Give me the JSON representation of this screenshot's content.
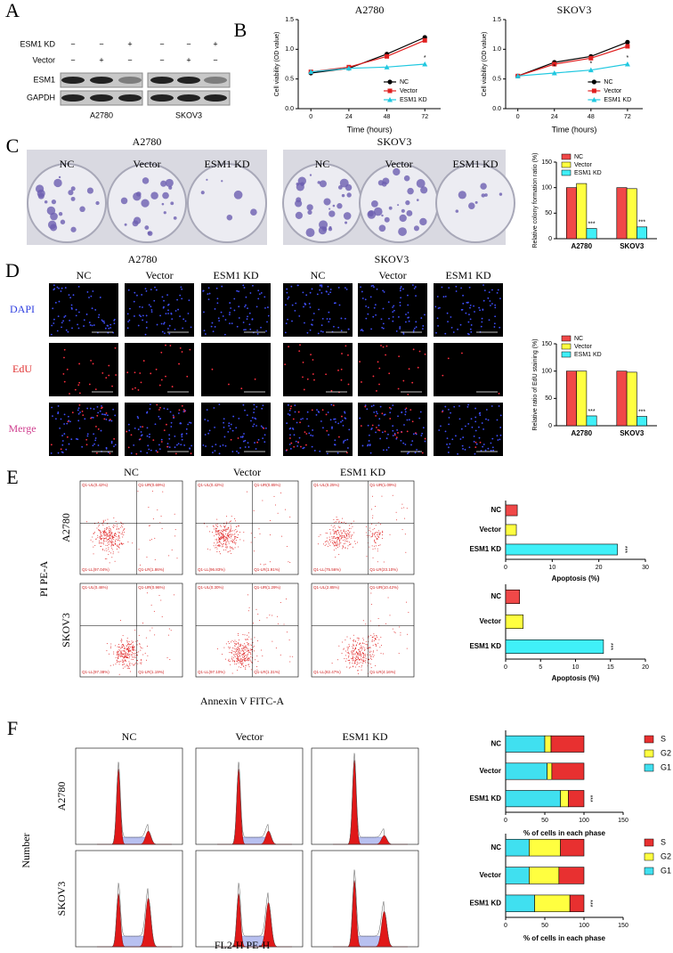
{
  "labels": [
    "A",
    "B",
    "C",
    "D",
    "E",
    "F"
  ],
  "blot": {
    "rows": [
      "ESM1 KD",
      "Vector"
    ],
    "signs": [
      [
        "−",
        "−",
        "+",
        "−",
        "−",
        "+"
      ],
      [
        "−",
        "+",
        "−",
        "−",
        "+",
        "−"
      ]
    ],
    "bands": [
      "ESM1",
      "GAPDH"
    ],
    "cells": [
      "A2780",
      "SKOV3"
    ]
  },
  "colony": {
    "groups": [
      {
        "name": "A2780",
        "conditions": [
          "NC",
          "Vector",
          "ESM1 KD"
        ]
      },
      {
        "name": "SKOV3",
        "conditions": [
          "NC",
          "Vector",
          "ESM1 KD"
        ]
      }
    ]
  },
  "edu": {
    "groups": [
      {
        "name": "A2780",
        "conditions": [
          "NC",
          "Vector",
          "ESM1 KD"
        ]
      },
      {
        "name": "SKOV3",
        "conditions": [
          "NC",
          "Vector",
          "ESM1 KD"
        ]
      }
    ],
    "channels": [
      "DAPI",
      "EdU",
      "Merge"
    ]
  },
  "flow": {
    "conditions": [
      "NC",
      "Vector",
      "ESM1 KD"
    ],
    "cells": [
      "A2780",
      "SKOV3"
    ],
    "ylabel": "PI PE-A",
    "xlabel": "Annexin V FITC-A",
    "quadrants": [
      [
        [
          "Q1-UL(0.42%)",
          "Q1-UR(0.69%)",
          "Q1-LL(97.04%)",
          "Q1-LR(1.86%)"
        ],
        [
          "Q1-UL(0.42%)",
          "Q1-UR(0.85%)",
          "Q1-LL(96.83%)",
          "Q1-LR(1.91%)"
        ],
        [
          "Q1-UL(0.25%)",
          "Q1-UR(1.09%)",
          "Q1-LL(75.56%)",
          "Q1-LR(23.10%)"
        ]
      ],
      [
        [
          "Q1-UL(0.46%)",
          "Q1-UR(0.96%)",
          "Q1-LL(97.38%)",
          "Q1-LR(1.19%)"
        ],
        [
          "Q1-UL(0.30%)",
          "Q1-UR(1.29%)",
          "Q1-LL(97.10%)",
          "Q1-LR(1.31%)"
        ],
        [
          "Q1-UL(2.85%)",
          "Q1-UR(10.42%)",
          "Q1-LL(82.47%)",
          "Q1-LR(4.16%)"
        ]
      ]
    ]
  },
  "cycle": {
    "conditions": [
      "NC",
      "Vector",
      "ESM1 KD"
    ],
    "cells": [
      "A2780",
      "SKOV3"
    ],
    "ylabel": "Number",
    "xlabel": "FL2-H PE-H"
  },
  "chart_data": [
    {
      "type": "line",
      "title": "A2780",
      "xlabel": "Time (hours)",
      "ylabel": "Cell viability (OD value)",
      "x": [
        0,
        24,
        48,
        72
      ],
      "xlim": [
        -8,
        82
      ],
      "xticks": [
        0,
        24,
        48,
        72
      ],
      "ylim": [
        0,
        1.5
      ],
      "yticks": [
        {
          "value": 0,
          "label": "0.0"
        },
        0.5,
        {
          "value": 1,
          "label": "1.0"
        },
        1.5
      ],
      "legend": "lower right",
      "series": [
        {
          "name": "NC",
          "color": "#000000",
          "marker": "circle",
          "values": [
            0.6,
            0.68,
            0.92,
            1.2
          ]
        },
        {
          "name": "Vector",
          "color": "#e02020",
          "marker": "square",
          "values": [
            0.62,
            0.7,
            0.88,
            1.15
          ]
        },
        {
          "name": "ESM1 KD",
          "color": "#20c8e0",
          "marker": "triangle",
          "values": [
            0.62,
            0.68,
            0.7,
            0.75
          ],
          "significance": [
            null,
            null,
            null,
            "*"
          ]
        }
      ]
    },
    {
      "type": "line",
      "title": "SKOV3",
      "xlabel": "Time (hours)",
      "ylabel": "Cell viability (OD value)",
      "x": [
        0,
        24,
        48,
        72
      ],
      "xlim": [
        -8,
        82
      ],
      "xticks": [
        0,
        24,
        48,
        72
      ],
      "ylim": [
        0,
        1.5
      ],
      "yticks": [
        {
          "value": 0,
          "label": "0.0"
        },
        0.5,
        {
          "value": 1,
          "label": "1.0"
        },
        1.5
      ],
      "legend": "lower right",
      "series": [
        {
          "name": "NC",
          "color": "#000000",
          "marker": "circle",
          "values": [
            0.55,
            0.78,
            0.88,
            1.12
          ]
        },
        {
          "name": "Vector",
          "color": "#e02020",
          "marker": "square",
          "values": [
            0.55,
            0.75,
            0.85,
            1.05
          ]
        },
        {
          "name": "ESM1 KD",
          "color": "#20c8e0",
          "marker": "triangle",
          "values": [
            0.55,
            0.6,
            0.65,
            0.75
          ],
          "significance": [
            null,
            "*",
            "*",
            "*"
          ]
        }
      ]
    },
    {
      "type": "bar",
      "ylabel": "Relative colony formation ratio (%)",
      "categories": [
        "A2780",
        "SKOV3"
      ],
      "ylim": [
        0,
        150
      ],
      "yticks": [
        0,
        50,
        100,
        150
      ],
      "legend": "upper left",
      "series": [
        {
          "name": "NC",
          "color": "#f04848",
          "values": [
            100,
            100
          ]
        },
        {
          "name": "Vector",
          "color": "#ffff40",
          "values": [
            108,
            98
          ]
        },
        {
          "name": "ESM1 KD",
          "color": "#40f0f8",
          "values": [
            20,
            23
          ],
          "significance": [
            "***",
            "***"
          ]
        }
      ]
    },
    {
      "type": "bar",
      "ylabel": "Relative ratio of EdU staining (%)",
      "categories": [
        "A2780",
        "SKOV3"
      ],
      "ylim": [
        0,
        150
      ],
      "yticks": [
        0,
        50,
        100,
        150
      ],
      "legend": "upper left",
      "series": [
        {
          "name": "NC",
          "color": "#f04848",
          "values": [
            100,
            100
          ]
        },
        {
          "name": "Vector",
          "color": "#ffff40",
          "values": [
            100,
            98
          ]
        },
        {
          "name": "ESM1 KD",
          "color": "#40f0f8",
          "values": [
            18,
            17
          ],
          "significance": [
            "***",
            "***"
          ]
        }
      ]
    },
    {
      "type": "barh",
      "xlabel": "Apoptosis (%)",
      "categories": [
        "NC",
        "Vector",
        "ESM1 KD"
      ],
      "values": [
        2.5,
        2.3,
        24
      ],
      "colors": [
        "#f04848",
        "#ffff40",
        "#40f0f8"
      ],
      "xlim": [
        0,
        30
      ],
      "xticks": [
        0,
        10,
        20,
        30
      ],
      "significance": [
        null,
        null,
        "***"
      ]
    },
    {
      "type": "barh",
      "xlabel": "Apoptosis (%)",
      "categories": [
        "NC",
        "Vector",
        "ESM1 KD"
      ],
      "values": [
        2,
        2.5,
        14
      ],
      "colors": [
        "#f04848",
        "#ffff40",
        "#40f0f8"
      ],
      "xlim": [
        0,
        20
      ],
      "xticks": [
        0,
        5,
        10,
        15,
        20
      ],
      "significance": [
        null,
        null,
        "***"
      ]
    },
    {
      "type": "stacked_barh",
      "xlabel": "% of cells in each phase",
      "categories": [
        "NC",
        "Vector",
        "ESM1 KD"
      ],
      "xlim": [
        0,
        150
      ],
      "xticks": [
        0,
        50,
        100,
        150
      ],
      "legend": "right",
      "significance": [
        null,
        null,
        "***"
      ],
      "series": [
        {
          "name": "G1",
          "color": "#40e0f0",
          "values": [
            50,
            53,
            70
          ]
        },
        {
          "name": "G2",
          "color": "#ffff40",
          "values": [
            8,
            6,
            10
          ]
        },
        {
          "name": "S",
          "color": "#e83030",
          "values": [
            42,
            41,
            20
          ]
        }
      ]
    },
    {
      "type": "stacked_barh",
      "xlabel": "% of cells in each phase",
      "categories": [
        "NC",
        "Vector",
        "ESM1 KD"
      ],
      "xlim": [
        0,
        150
      ],
      "xticks": [
        0,
        50,
        100,
        150
      ],
      "legend": "right",
      "significance": [
        null,
        null,
        "***"
      ],
      "series": [
        {
          "name": "G1",
          "color": "#40e0f0",
          "values": [
            30,
            30,
            37
          ]
        },
        {
          "name": "G2",
          "color": "#ffff40",
          "values": [
            40,
            38,
            45
          ]
        },
        {
          "name": "S",
          "color": "#e83030",
          "values": [
            30,
            32,
            18
          ]
        }
      ]
    }
  ]
}
